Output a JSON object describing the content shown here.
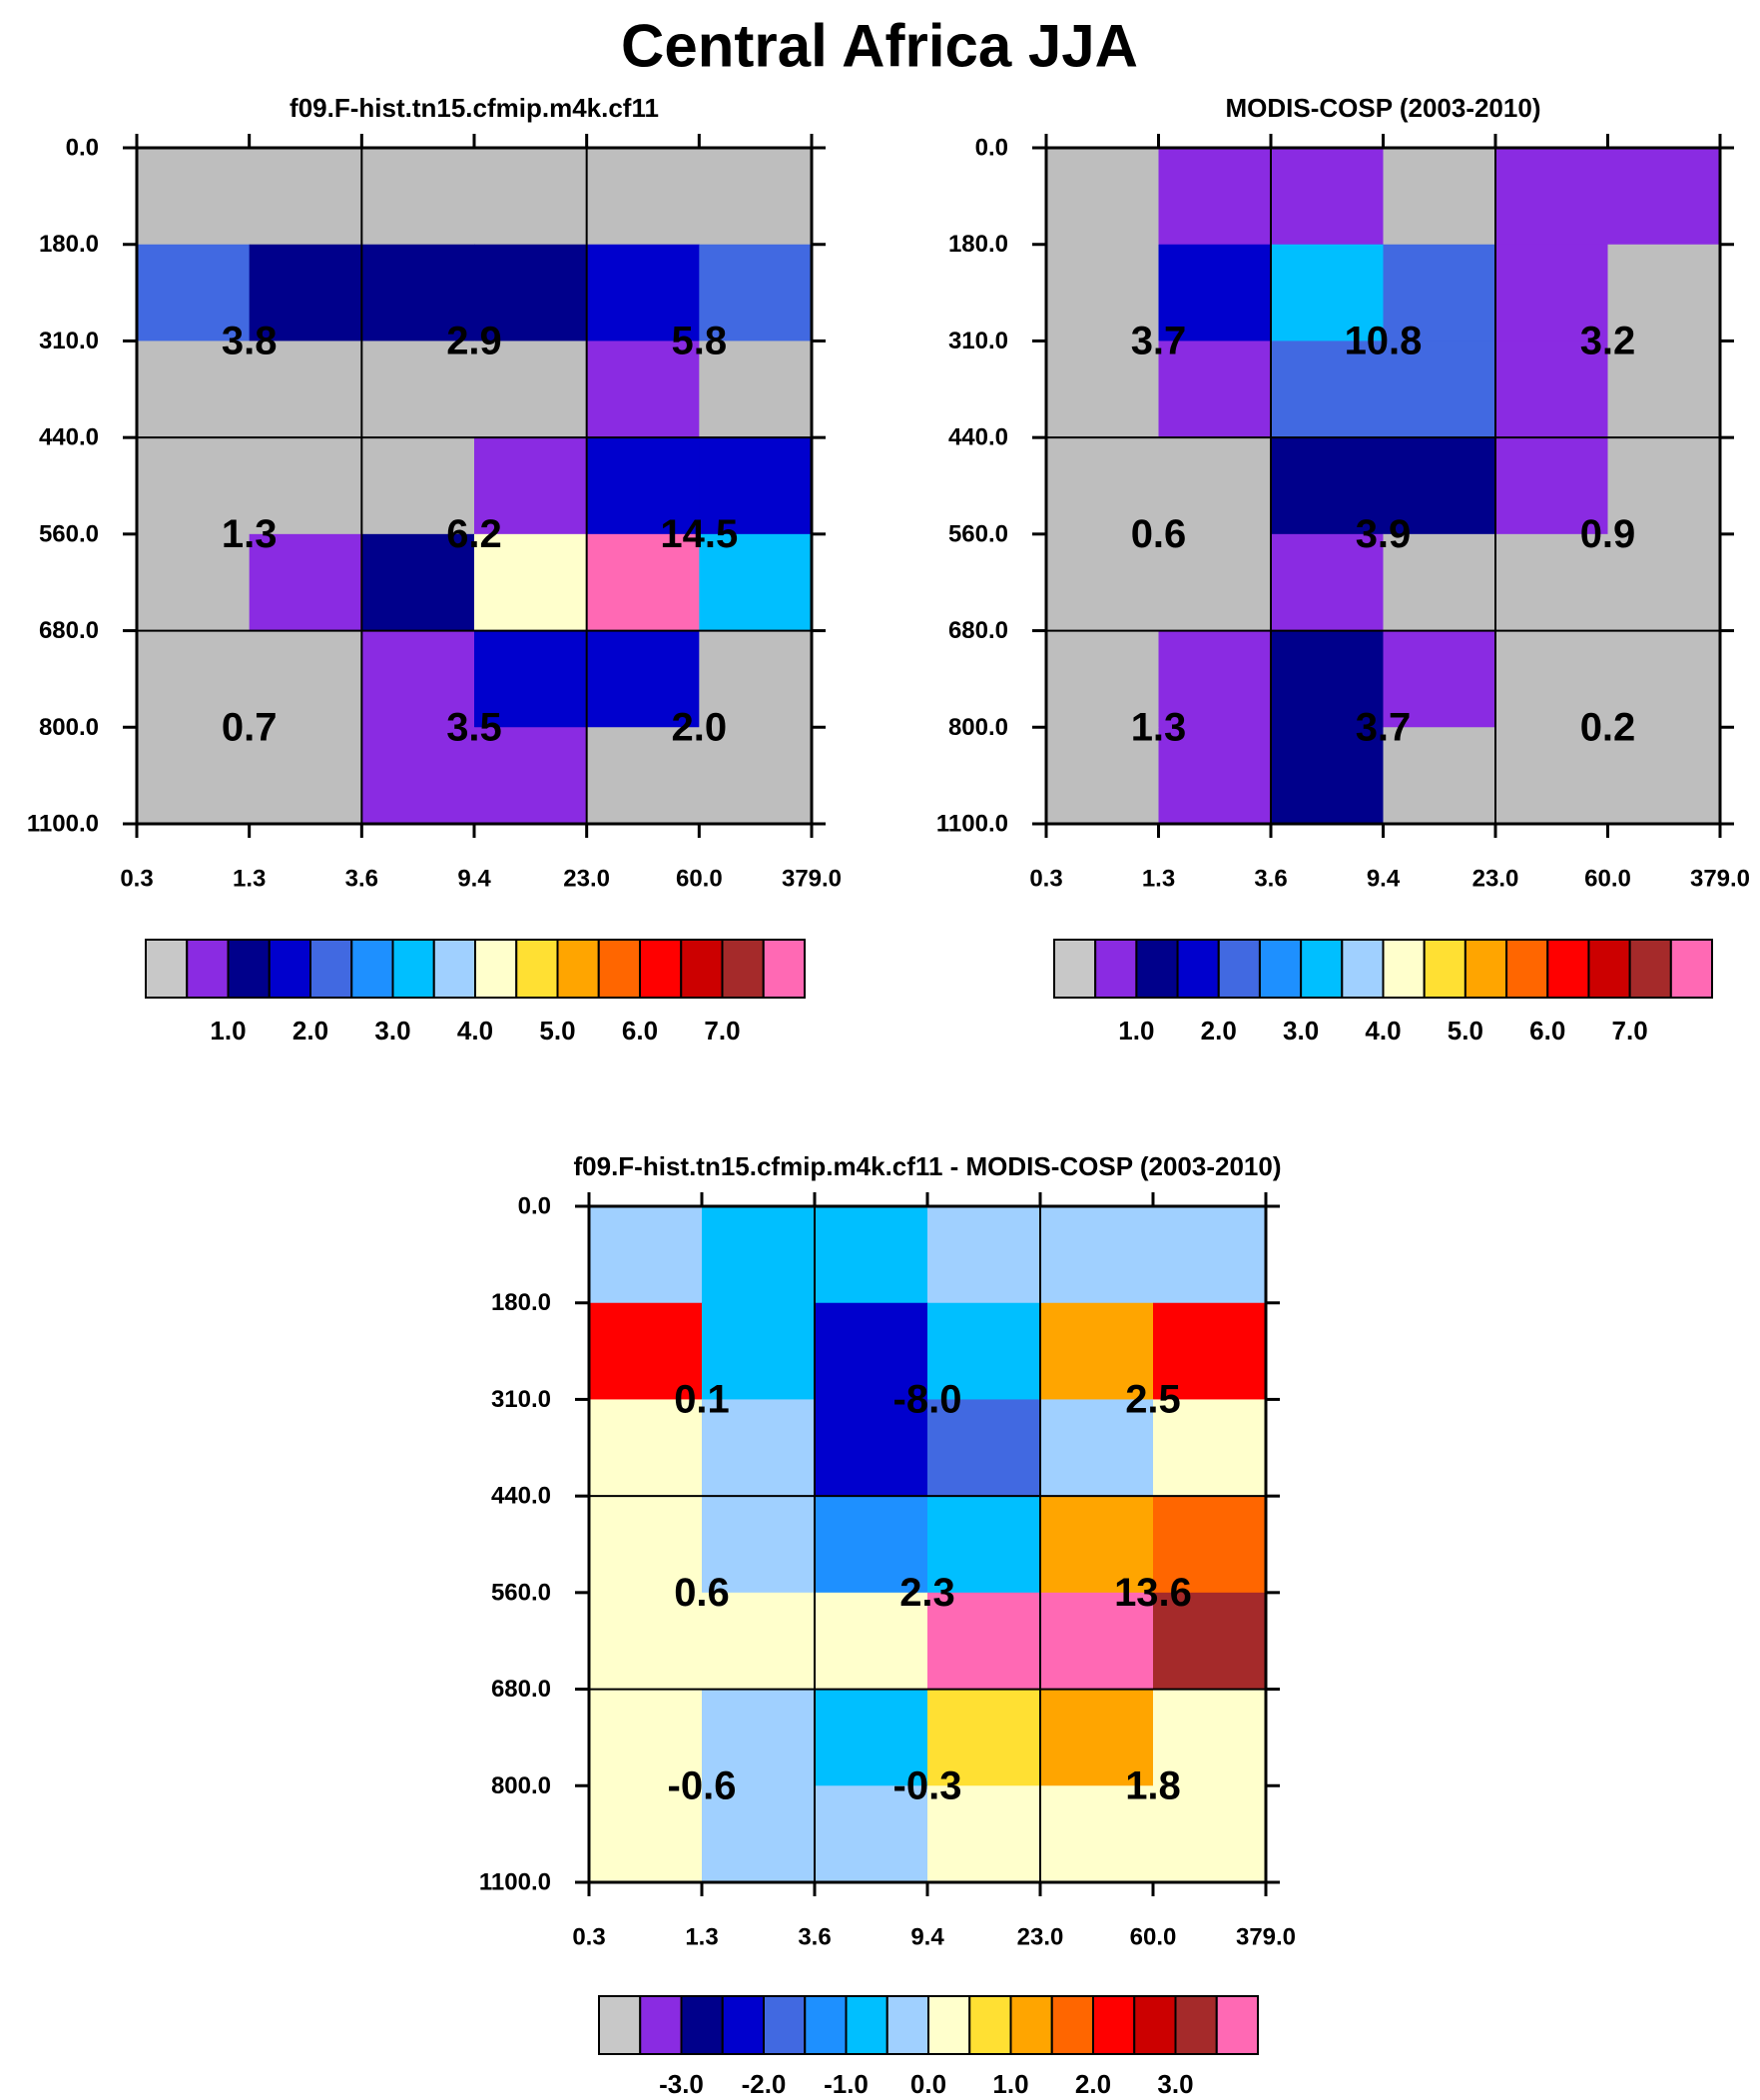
{
  "figure_title": "Central Africa JJA",
  "chart_data": [
    {
      "type": "heatmap",
      "title": "f09.F-hist.tn15.cfmip.m4k.cf11",
      "x_ticks": [
        "0.3",
        "1.3",
        "3.6",
        "9.4",
        "23.0",
        "60.0",
        "379.0"
      ],
      "y_ticks": [
        "0.0",
        "180.0",
        "310.0",
        "440.0",
        "560.0",
        "680.0",
        "800.0",
        "1100.0"
      ],
      "cell_colors": [
        [
          "#BEBEBE",
          "#BEBEBE",
          "#BEBEBE",
          "#BEBEBE",
          "#BEBEBE",
          "#BEBEBE"
        ],
        [
          "#4169E1",
          "#00008B",
          "#00008B",
          "#00008B",
          "#0000CD",
          "#4169E1"
        ],
        [
          "#BEBEBE",
          "#BEBEBE",
          "#BEBEBE",
          "#BEBEBE",
          "#8A2BE2",
          "#BEBEBE"
        ],
        [
          "#BEBEBE",
          "#BEBEBE",
          "#BEBEBE",
          "#8A2BE2",
          "#0000CD",
          "#0000CD"
        ],
        [
          "#BEBEBE",
          "#8A2BE2",
          "#00008B",
          "#FFFFCC",
          "#FF69B4",
          "#00BFFF"
        ],
        [
          "#BEBEBE",
          "#BEBEBE",
          "#8A2BE2",
          "#0000CD",
          "#0000CD",
          "#BEBEBE"
        ],
        [
          "#BEBEBE",
          "#BEBEBE",
          "#8A2BE2",
          "#8A2BE2",
          "#BEBEBE",
          "#BEBEBE"
        ]
      ],
      "box_values": [
        [
          "3.8",
          "2.9",
          "5.8"
        ],
        [
          "1.3",
          "6.2",
          "14.5"
        ],
        [
          "0.7",
          "3.5",
          "2.0"
        ]
      ],
      "colorbar": {
        "colors": [
          "#C8C8C8",
          "#8A2BE2",
          "#00008B",
          "#0000CD",
          "#4169E1",
          "#1E90FF",
          "#00BFFF",
          "#A0D0FF",
          "#FFFFCC",
          "#FFE033",
          "#FFA500",
          "#FF6600",
          "#FF0000",
          "#CC0000",
          "#A52A2A",
          "#FF69B4"
        ],
        "labels": [
          "1.0",
          "2.0",
          "3.0",
          "4.0",
          "5.0",
          "6.0",
          "7.0"
        ],
        "label_boundaries": [
          2,
          4,
          6,
          8,
          10,
          12,
          14
        ]
      }
    },
    {
      "type": "heatmap",
      "title": "MODIS-COSP (2003-2010)",
      "x_ticks": [
        "0.3",
        "1.3",
        "3.6",
        "9.4",
        "23.0",
        "60.0",
        "379.0"
      ],
      "y_ticks": [
        "0.0",
        "180.0",
        "310.0",
        "440.0",
        "560.0",
        "680.0",
        "800.0",
        "1100.0"
      ],
      "cell_colors": [
        [
          "#BEBEBE",
          "#8A2BE2",
          "#8A2BE2",
          "#BEBEBE",
          "#8A2BE2",
          "#8A2BE2"
        ],
        [
          "#BEBEBE",
          "#0000CD",
          "#00BFFF",
          "#4169E1",
          "#8A2BE2",
          "#BEBEBE"
        ],
        [
          "#BEBEBE",
          "#8A2BE2",
          "#4169E1",
          "#4169E1",
          "#8A2BE2",
          "#BEBEBE"
        ],
        [
          "#BEBEBE",
          "#BEBEBE",
          "#00008B",
          "#00008B",
          "#8A2BE2",
          "#BEBEBE"
        ],
        [
          "#BEBEBE",
          "#BEBEBE",
          "#8A2BE2",
          "#BEBEBE",
          "#BEBEBE",
          "#BEBEBE"
        ],
        [
          "#BEBEBE",
          "#8A2BE2",
          "#00008B",
          "#8A2BE2",
          "#BEBEBE",
          "#BEBEBE"
        ],
        [
          "#BEBEBE",
          "#8A2BE2",
          "#00008B",
          "#BEBEBE",
          "#BEBEBE",
          "#BEBEBE"
        ]
      ],
      "box_values": [
        [
          "3.7",
          "10.8",
          "3.2"
        ],
        [
          "0.6",
          "3.9",
          "0.9"
        ],
        [
          "1.3",
          "3.7",
          "0.2"
        ]
      ],
      "colorbar": {
        "colors": [
          "#C8C8C8",
          "#8A2BE2",
          "#00008B",
          "#0000CD",
          "#4169E1",
          "#1E90FF",
          "#00BFFF",
          "#A0D0FF",
          "#FFFFCC",
          "#FFE033",
          "#FFA500",
          "#FF6600",
          "#FF0000",
          "#CC0000",
          "#A52A2A",
          "#FF69B4"
        ],
        "labels": [
          "1.0",
          "2.0",
          "3.0",
          "4.0",
          "5.0",
          "6.0",
          "7.0"
        ],
        "label_boundaries": [
          2,
          4,
          6,
          8,
          10,
          12,
          14
        ]
      }
    },
    {
      "type": "heatmap",
      "title": "f09.F-hist.tn15.cfmip.m4k.cf11 - MODIS-COSP (2003-2010)",
      "x_ticks": [
        "0.3",
        "1.3",
        "3.6",
        "9.4",
        "23.0",
        "60.0",
        "379.0"
      ],
      "y_ticks": [
        "0.0",
        "180.0",
        "310.0",
        "440.0",
        "560.0",
        "680.0",
        "800.0",
        "1100.0"
      ],
      "cell_colors": [
        [
          "#A0D0FF",
          "#00BFFF",
          "#00BFFF",
          "#A0D0FF",
          "#A0D0FF",
          "#A0D0FF"
        ],
        [
          "#FF0000",
          "#00BFFF",
          "#0000CD",
          "#00BFFF",
          "#FFA500",
          "#FF0000"
        ],
        [
          "#FFFFCC",
          "#A0D0FF",
          "#0000CD",
          "#4169E1",
          "#A0D0FF",
          "#FFFFCC"
        ],
        [
          "#FFFFCC",
          "#A0D0FF",
          "#1E90FF",
          "#00BFFF",
          "#FFA500",
          "#FF6600"
        ],
        [
          "#FFFFCC",
          "#FFFFCC",
          "#FFFFCC",
          "#FF69B4",
          "#FF69B4",
          "#A52A2A"
        ],
        [
          "#FFFFCC",
          "#A0D0FF",
          "#00BFFF",
          "#FFE033",
          "#FFA500",
          "#FFFFCC"
        ],
        [
          "#FFFFCC",
          "#A0D0FF",
          "#A0D0FF",
          "#FFFFCC",
          "#FFFFCC",
          "#FFFFCC"
        ]
      ],
      "box_values": [
        [
          "0.1",
          "-8.0",
          "2.5"
        ],
        [
          "0.6",
          "2.3",
          "13.6"
        ],
        [
          "-0.6",
          "-0.3",
          "1.8"
        ]
      ],
      "colorbar": {
        "colors": [
          "#C8C8C8",
          "#8A2BE2",
          "#00008B",
          "#0000CD",
          "#4169E1",
          "#1E90FF",
          "#00BFFF",
          "#A0D0FF",
          "#FFFFCC",
          "#FFE033",
          "#FFA500",
          "#FF6600",
          "#FF0000",
          "#CC0000",
          "#A52A2A",
          "#FF69B4"
        ],
        "labels": [
          "-3.0",
          "-2.0",
          "-1.0",
          "0.0",
          "1.0",
          "2.0",
          "3.0"
        ],
        "label_boundaries": [
          2,
          4,
          6,
          8,
          10,
          12,
          14
        ]
      }
    }
  ]
}
